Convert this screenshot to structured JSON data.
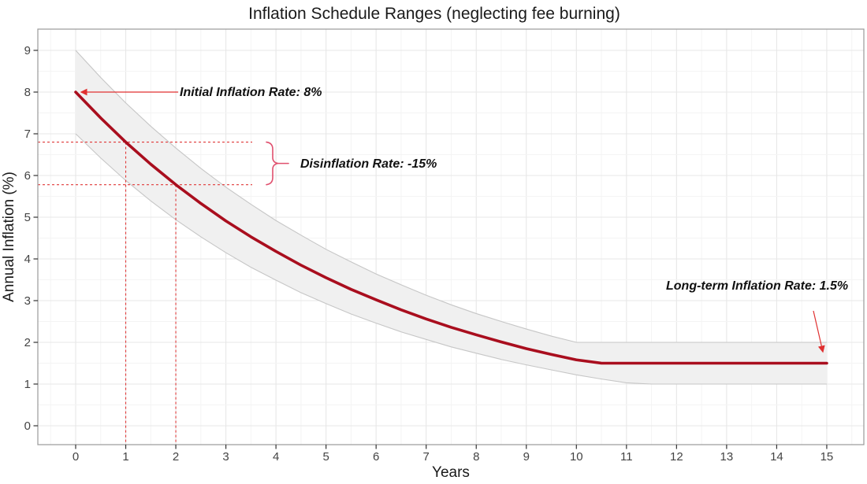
{
  "colors": {
    "curve": "#a90e1e",
    "band_fill": "#f0f0f0",
    "band_edge": "#c6c6c6",
    "guide": "#e03838",
    "arrow": "#e03030",
    "brace": "#e0506e",
    "grid_major": "#e7e7e7",
    "grid_minor": "#f4f4f4",
    "panel_border": "#999999",
    "tick_mark": "#333333"
  },
  "chart_data": {
    "type": "line",
    "title": "Inflation Schedule Ranges (neglecting fee burning)",
    "xlabel": "Years",
    "ylabel": "Annual Inflation (%)",
    "xlim": [
      -0.75,
      15.75
    ],
    "ylim": [
      -0.45,
      9.5
    ],
    "x_ticks": [
      0,
      1,
      2,
      3,
      4,
      5,
      6,
      7,
      8,
      9,
      10,
      11,
      12,
      13,
      14,
      15
    ],
    "y_ticks": [
      0,
      1,
      2,
      3,
      4,
      5,
      6,
      7,
      8,
      9
    ],
    "grid": "major at integers, minor at 0.5 steps, light gray, panel bordered",
    "legend_position": "none",
    "x": [
      0,
      0.5,
      1,
      1.5,
      2,
      2.5,
      3,
      3.5,
      4,
      4.5,
      5,
      5.5,
      6,
      6.5,
      7,
      7.5,
      8,
      8.5,
      9,
      9.5,
      10,
      10.5,
      11,
      11.5,
      12,
      12.5,
      13,
      13.5,
      14,
      14.5,
      15
    ],
    "series": [
      {
        "name": "upper_range",
        "values": [
          9,
          8.35,
          7.74,
          7.18,
          6.66,
          6.17,
          5.72,
          5.31,
          4.92,
          4.57,
          4.23,
          3.93,
          3.64,
          3.38,
          3.13,
          2.9,
          2.69,
          2.5,
          2.32,
          2.15,
          2,
          2,
          2,
          2,
          2,
          2,
          2,
          2,
          2,
          2,
          2
        ]
      },
      {
        "name": "expected_schedule",
        "values": [
          8,
          7.38,
          6.8,
          6.27,
          5.78,
          5.33,
          4.91,
          4.53,
          4.18,
          3.85,
          3.55,
          3.27,
          3.02,
          2.78,
          2.56,
          2.36,
          2.18,
          2.01,
          1.85,
          1.71,
          1.58,
          1.5,
          1.5,
          1.5,
          1.5,
          1.5,
          1.5,
          1.5,
          1.5,
          1.5,
          1.5
        ]
      },
      {
        "name": "lower_range",
        "values": [
          7,
          6.42,
          5.88,
          5.39,
          4.94,
          4.53,
          4.15,
          3.8,
          3.49,
          3.19,
          2.93,
          2.68,
          2.46,
          2.25,
          2.07,
          1.89,
          1.74,
          1.59,
          1.46,
          1.34,
          1.22,
          1.12,
          1.03,
          1,
          1,
          1,
          1,
          1,
          1,
          1,
          1
        ]
      }
    ],
    "guides": {
      "vertical_years": [
        1,
        2
      ],
      "horizontal_values": [
        6.8,
        5.78
      ]
    },
    "annotations": [
      {
        "id": "initial",
        "label": "Initial Inflation Rate: 8%",
        "points_to": {
          "year": 0,
          "value": 8
        }
      },
      {
        "id": "disinflation",
        "label": "Disinflation Rate: -15%",
        "between_years": [
          1,
          2
        ],
        "bracket_values": [
          6.8,
          5.78
        ]
      },
      {
        "id": "longterm",
        "label": "Long-term Inflation Rate: 1.5%",
        "points_to": {
          "year": 15,
          "value": 1.5
        }
      }
    ]
  }
}
